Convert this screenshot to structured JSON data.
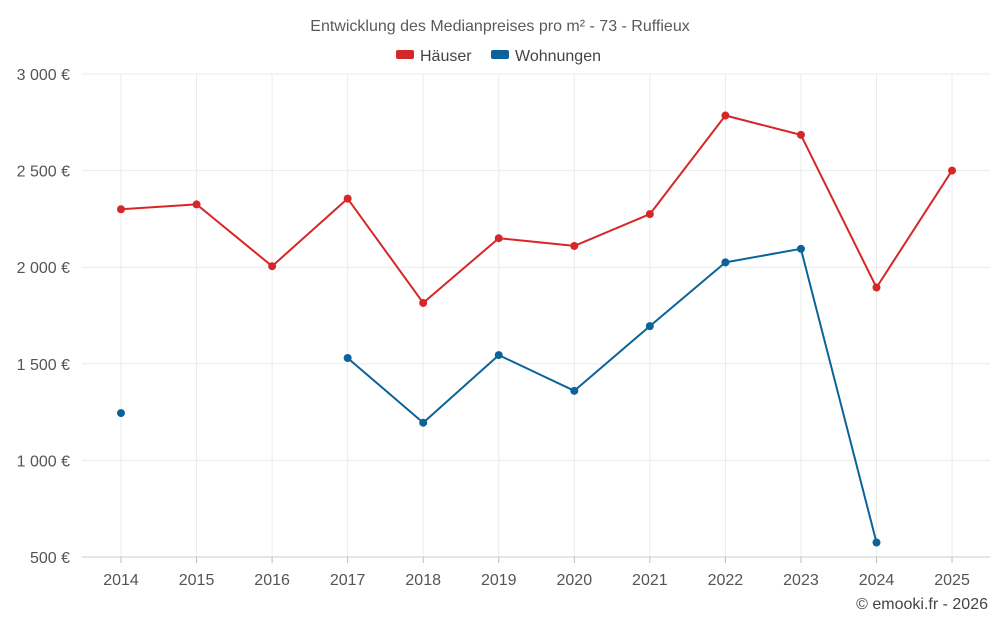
{
  "chart_data": {
    "type": "line",
    "title": "Entwicklung des Medianpreises pro m² - 73 - Ruffieux",
    "categories": [
      "2014",
      "2015",
      "2016",
      "2017",
      "2018",
      "2019",
      "2020",
      "2021",
      "2022",
      "2023",
      "2024",
      "2025"
    ],
    "y_ticks": [
      {
        "value": 500,
        "label": "500 €"
      },
      {
        "value": 1000,
        "label": "1 000 €"
      },
      {
        "value": 1500,
        "label": "1 500 €"
      },
      {
        "value": 2000,
        "label": "2 000 €"
      },
      {
        "value": 2500,
        "label": "2 500 €"
      },
      {
        "value": 3000,
        "label": "3 000 €"
      }
    ],
    "ylim": [
      500,
      3000
    ],
    "grid": true,
    "legend_position": "top-center",
    "series": [
      {
        "name": "Häuser",
        "color": "#d62728",
        "values": [
          2300,
          2325,
          2005,
          2355,
          1815,
          2150,
          2110,
          2275,
          2785,
          2685,
          1895,
          2500
        ]
      },
      {
        "name": "Wohnungen",
        "color": "#0b6399",
        "values": [
          1245,
          null,
          null,
          1530,
          1195,
          1545,
          1360,
          1695,
          2025,
          2095,
          575,
          null
        ]
      }
    ],
    "credit": "© emooki.fr - 2026"
  }
}
